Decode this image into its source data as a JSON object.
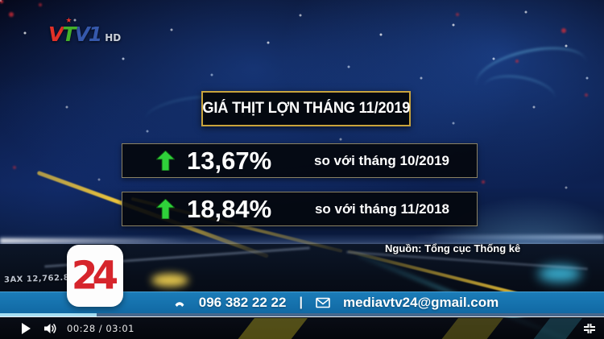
{
  "channel": {
    "logo_letters": [
      {
        "char": "V"
      },
      {
        "char": "T"
      },
      {
        "char": "V"
      },
      {
        "char": "1"
      }
    ],
    "logo_star": "★",
    "hd_label": "HD",
    "vtv24_label": "24"
  },
  "infographic": {
    "title": "GIÁ THỊT LỢN THÁNG 11/2019",
    "stats": [
      {
        "direction": "up",
        "value": "13,67%",
        "compare": "so với tháng 10/2019"
      },
      {
        "direction": "up",
        "value": "18,84%",
        "compare": "so với tháng 11/2018"
      }
    ],
    "source": "Nguồn: Tổng cục Thống kê"
  },
  "background": {
    "ticker_left": "3AX  12,762.81"
  },
  "contact": {
    "phone": "096 382 22 22",
    "divider": "|",
    "email": "mediavtv24@gmail.com"
  },
  "player": {
    "time_display": "00:28 / 03:01",
    "progress_percent": 16
  },
  "colors": {
    "accent_gold": "#c9a43c",
    "arrow_green": "#2fd13a",
    "contact_bar_blue": "#1673ad",
    "logo_red": "#d6252c",
    "progress_cyan": "#a6def3"
  }
}
